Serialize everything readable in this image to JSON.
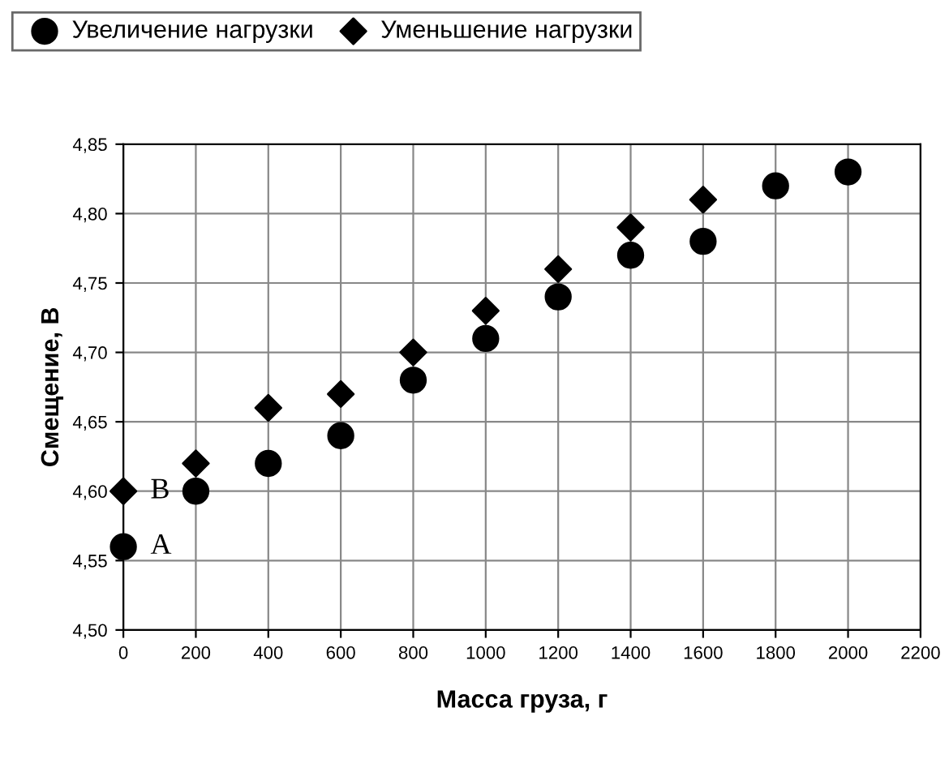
{
  "chart_data": {
    "type": "scatter",
    "xlabel": "Масса груза, г",
    "ylabel": "Смещение, В",
    "x": [
      0,
      200,
      400,
      600,
      800,
      1000,
      1200,
      1400,
      1600,
      1800,
      2000
    ],
    "series": [
      {
        "name": "Увеличение нагрузки",
        "color": "#000000",
        "marker": "circle",
        "values": [
          4.56,
          4.6,
          4.62,
          4.64,
          4.68,
          4.71,
          4.74,
          4.77,
          4.78,
          4.82,
          4.83
        ]
      },
      {
        "name": "Уменьшение нагрузки",
        "color": "#000000",
        "marker": "diamond",
        "values": [
          4.6,
          4.62,
          4.66,
          4.67,
          4.7,
          4.73,
          4.76,
          4.79,
          4.81,
          null,
          null
        ]
      }
    ],
    "xlim": [
      0,
      2200
    ],
    "xticks": [
      0,
      200,
      400,
      600,
      800,
      1000,
      1200,
      1400,
      1600,
      1800,
      2000,
      2200
    ],
    "ylim": [
      4.5,
      4.85
    ],
    "yticks": [
      {
        "value": 4.5,
        "label": "4,50"
      },
      {
        "value": 4.55,
        "label": "4,55"
      },
      {
        "value": 4.6,
        "label": "4,60"
      },
      {
        "value": 4.65,
        "label": "4,65"
      },
      {
        "value": 4.7,
        "label": "4,70"
      },
      {
        "value": 4.75,
        "label": "4,75"
      },
      {
        "value": 4.8,
        "label": "4,80"
      },
      {
        "value": 4.85,
        "label": "4,85"
      }
    ],
    "annotations": [
      {
        "text": "A",
        "x": 0,
        "y": 4.56
      },
      {
        "text": "B",
        "x": 0,
        "y": 4.6
      }
    ],
    "grid": true,
    "legend": "top left"
  }
}
